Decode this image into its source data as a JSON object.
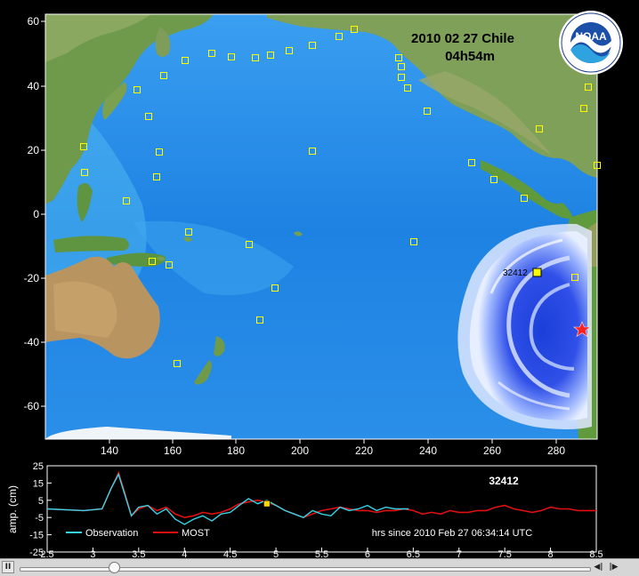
{
  "map": {
    "title_line1": "2010 02 27 Chile",
    "title_line2": "04h54m",
    "logo_text": "NOAA",
    "x_ticks": [
      "140",
      "160",
      "180",
      "200",
      "220",
      "240",
      "260",
      "280"
    ],
    "y_ticks": [
      "60",
      "40",
      "20",
      "0",
      "-20",
      "-40",
      "-60"
    ],
    "selected_station": "32412",
    "colors": {
      "ocean": "#1f86e6",
      "land": "#6f8f48",
      "station": "#ffff00",
      "epicenter": "#ff2020"
    }
  },
  "tide_gauge": {
    "station_label": "32412",
    "ylabel": "amp. (cm)",
    "y_ticks": [
      "25",
      "15",
      "5",
      "-5",
      "-15",
      "-25"
    ],
    "x_ticks": [
      "2.5",
      "3",
      "3.5",
      "4",
      "4.5",
      "5",
      "5.5",
      "6",
      "6.5",
      "7",
      "7.5",
      "8",
      "8.5"
    ],
    "xlabel": "hrs since 2010 Feb 27 06:34:14 UTC",
    "legend_observation": "Observation",
    "legend_most": "MOST",
    "colors": {
      "observation": "#35d4e8",
      "most": "#e01010",
      "marker": "#ffd700"
    }
  },
  "chart_data": {
    "type": "line",
    "title": "32412",
    "xlabel": "hrs since 2010 Feb 27 06:34:14 UTC",
    "ylabel": "amp. (cm)",
    "xlim": [
      2.5,
      8.5
    ],
    "ylim": [
      -25,
      25
    ],
    "series": [
      {
        "name": "Observation",
        "x": [
          2.5,
          2.9,
          3.1,
          3.2,
          3.28,
          3.35,
          3.42,
          3.5,
          3.6,
          3.7,
          3.8,
          3.9,
          4.0,
          4.1,
          4.2,
          4.3,
          4.4,
          4.5,
          4.6,
          4.7,
          4.8,
          4.9,
          5.0,
          5.1,
          5.2,
          5.3,
          5.4,
          5.5,
          5.6,
          5.7,
          5.8,
          5.9,
          6.0,
          6.1,
          6.2,
          6.3,
          6.45
        ],
        "y": [
          0,
          -1,
          0,
          12,
          20,
          8,
          -4,
          1,
          2,
          -3,
          0,
          -6,
          -9,
          -6,
          -4,
          -7,
          -3,
          -2,
          2,
          6,
          3,
          5,
          2,
          -1,
          -3,
          -5,
          -1,
          -3,
          -4,
          1,
          -1,
          0,
          2,
          -1,
          1,
          0,
          0
        ]
      },
      {
        "name": "MOST",
        "x": [
          2.5,
          2.9,
          3.1,
          3.2,
          3.28,
          3.35,
          3.42,
          3.5,
          3.6,
          3.7,
          3.8,
          3.9,
          4.0,
          4.1,
          4.2,
          4.3,
          4.4,
          4.5,
          4.6,
          4.7,
          4.8,
          4.9,
          5.0,
          5.1,
          5.2,
          5.3,
          5.4,
          5.5,
          5.6,
          5.7,
          5.8,
          5.9,
          6.0,
          6.1,
          6.2,
          6.3,
          6.4,
          6.5,
          6.6,
          6.7,
          6.8,
          6.9,
          7.0,
          7.1,
          7.2,
          7.3,
          7.4,
          7.5,
          7.6,
          7.7,
          7.8,
          7.9,
          8.0,
          8.1,
          8.2,
          8.3,
          8.4,
          8.5
        ],
        "y": [
          0,
          -1,
          0,
          12,
          21,
          9,
          -4,
          0,
          2,
          -1,
          1,
          -3,
          -5,
          -4,
          -2,
          -3,
          -2,
          0,
          3,
          4,
          5,
          4,
          2,
          -1,
          -3,
          -5,
          -3,
          -1,
          0,
          1,
          0,
          -1,
          -1,
          -2,
          -1,
          -1,
          0,
          -1,
          -3,
          -2,
          -3,
          -1,
          -2,
          -2,
          -1,
          -1,
          1,
          2,
          0,
          -1,
          -2,
          -1,
          1,
          0,
          0,
          -1,
          -1,
          -1
        ]
      }
    ],
    "marker": {
      "x": 4.9,
      "y": 3
    },
    "grid": false,
    "legend": "bottom-left"
  },
  "playback": {
    "pause_glyph": "II",
    "step_back_glyph": "◀|",
    "step_fwd_glyph": "|▶",
    "position": 0.165
  }
}
